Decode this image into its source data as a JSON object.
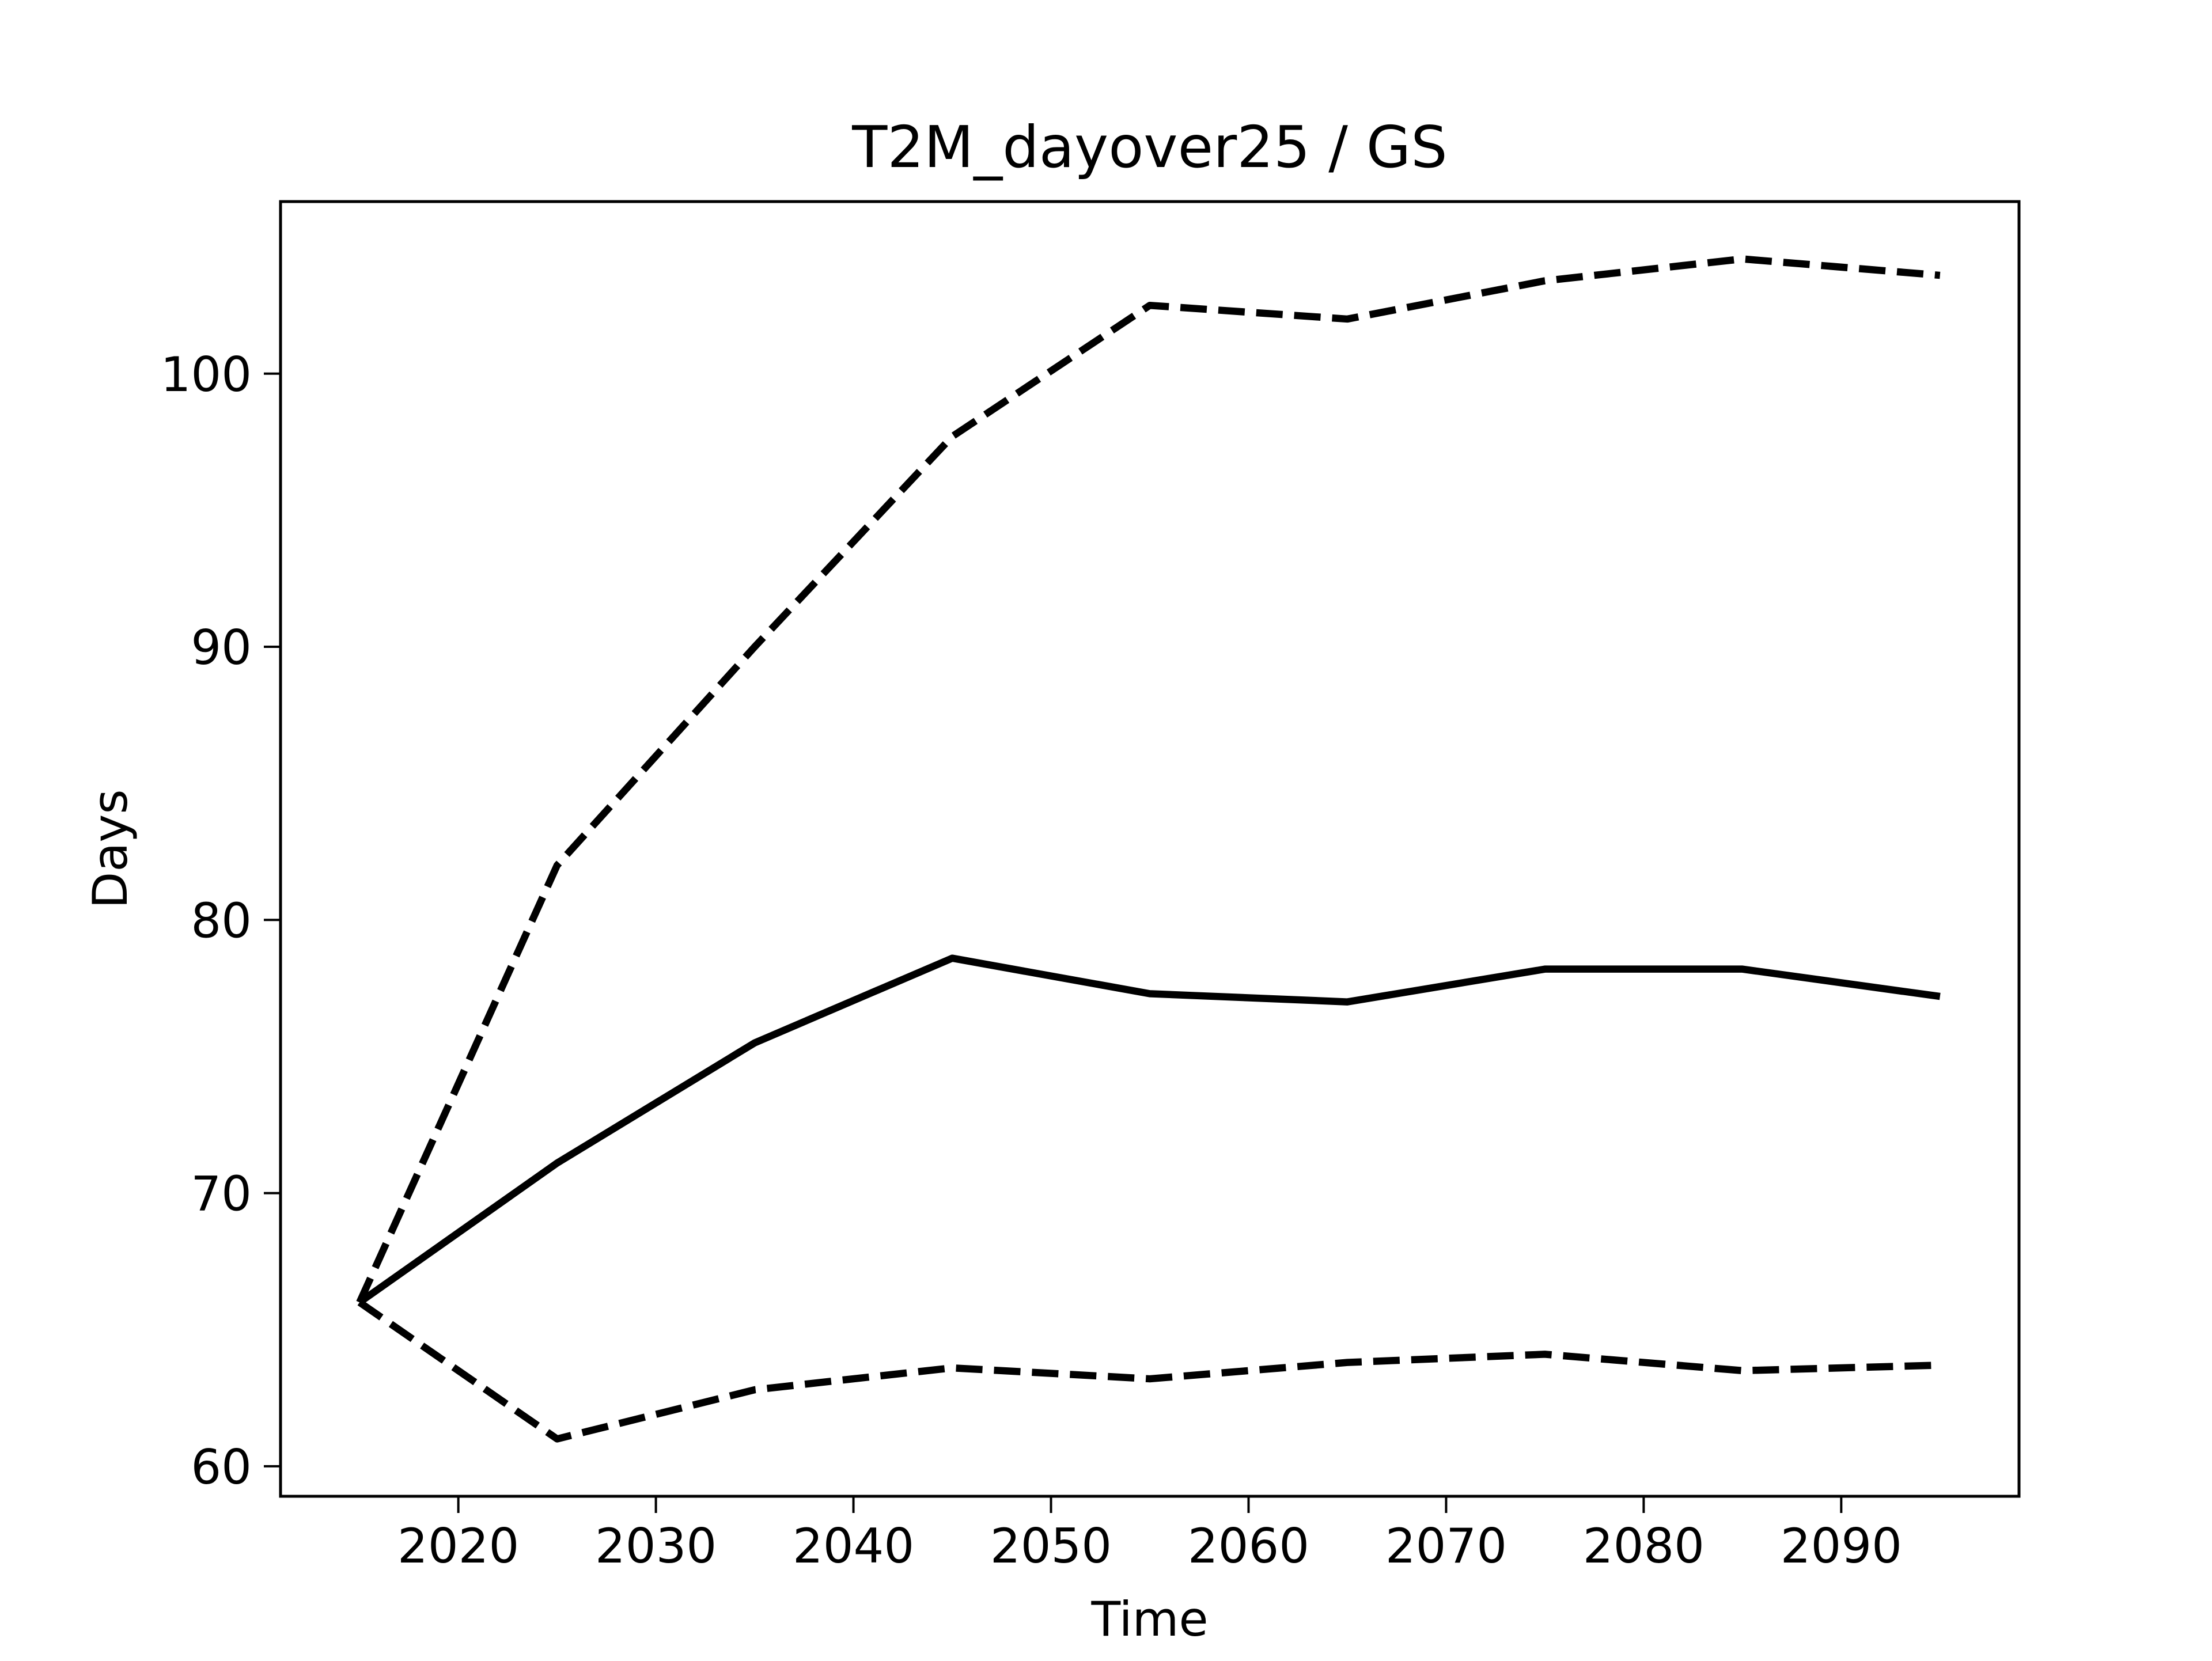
{
  "chart_data": {
    "type": "line",
    "title": "T2M_dayover25 / GS",
    "x_label": "Time",
    "y_label": "Days",
    "x": [
      2015,
      2025,
      2035,
      2045,
      2055,
      2065,
      2075,
      2085,
      2095
    ],
    "series": [
      {
        "color": "#000000",
        "dashed": false,
        "values": [
          66.0,
          71.1,
          75.5,
          78.6,
          77.3,
          77.0,
          78.2,
          78.2,
          77.2
        ]
      },
      {
        "color": "#000000",
        "dashed": true,
        "values": [
          66.0,
          82.0,
          90.0,
          97.7,
          102.5,
          102.0,
          103.4,
          104.2,
          103.6
        ]
      },
      {
        "color": "#000000",
        "dashed": true,
        "values": [
          66.0,
          61.0,
          62.8,
          63.6,
          63.2,
          63.8,
          64.1,
          63.5,
          63.7
        ]
      }
    ],
    "xlim": [
      2011,
      2099
    ],
    "ylim": [
      58.9,
      106.3
    ],
    "xticks": [
      2020,
      2030,
      2040,
      2050,
      2060,
      2070,
      2080,
      2090
    ],
    "yticks": [
      60,
      70,
      80,
      90,
      100
    ],
    "grid": false
  }
}
